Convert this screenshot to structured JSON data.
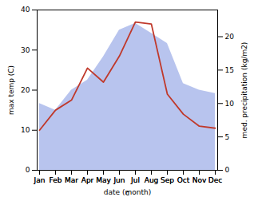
{
  "chart_data": {
    "type": "line",
    "categories": [
      "Jan",
      "Feb",
      "Mar",
      "Apr",
      "May",
      "Jun",
      "Jul",
      "Aug",
      "Sep",
      "Oct",
      "Nov",
      "Dec"
    ],
    "xlabel": "date (month)",
    "ylabel": "max temp (C)",
    "y2label": "med. precipitation (kg/m2)",
    "ylim": [
      0,
      40
    ],
    "yticks": [
      0,
      10,
      20,
      30,
      40
    ],
    "y2lim": [
      0,
      24
    ],
    "y2ticks": [
      0,
      5,
      10,
      15,
      20
    ],
    "series": [
      {
        "type": "area",
        "axis": "y2",
        "color": "#b8c4ee",
        "values": [
          10.0,
          9.0,
          12.0,
          13.5,
          17.0,
          21.0,
          22.0,
          20.5,
          19.0,
          13.0,
          12.0,
          11.5
        ]
      },
      {
        "type": "line",
        "color": "#c0392b",
        "values": [
          10.0,
          15.0,
          17.5,
          25.5,
          22.0,
          28.5,
          37.0,
          36.5,
          19.0,
          14.0,
          11.0,
          10.5
        ]
      }
    ]
  }
}
